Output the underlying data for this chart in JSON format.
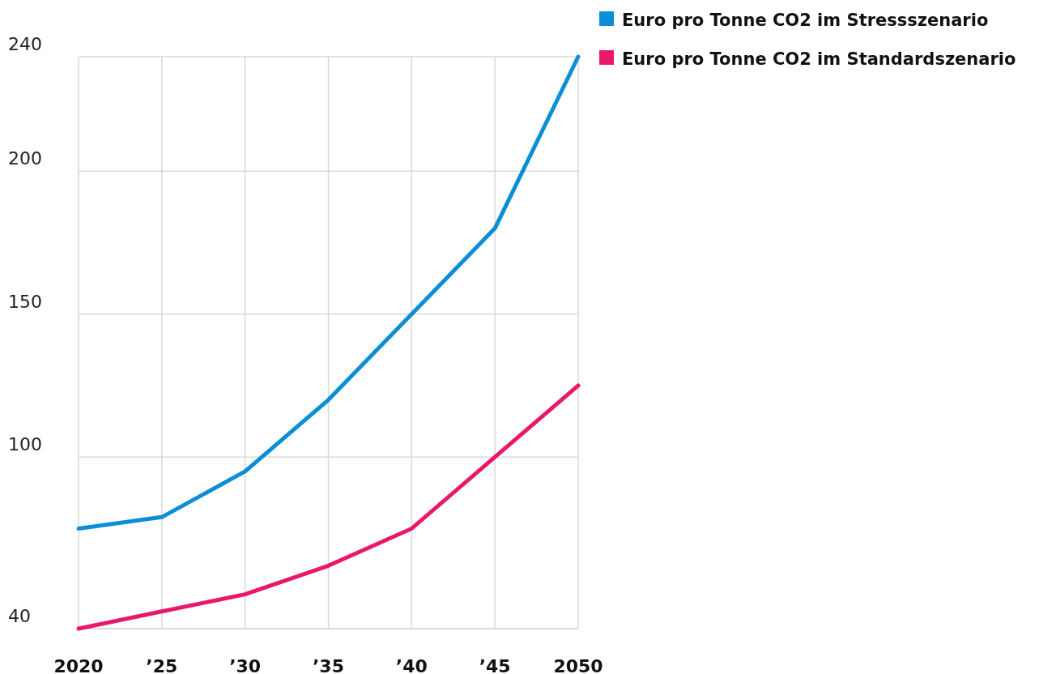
{
  "chart_data": {
    "type": "line",
    "x": [
      2020,
      2025,
      2030,
      2035,
      2040,
      2045,
      2050
    ],
    "series": [
      {
        "name": "Euro pro Tonne CO2 im Stressszenario",
        "color": "#0a8fd6",
        "values": [
          75,
          79,
          95,
          120,
          150,
          180,
          240
        ]
      },
      {
        "name": "Euro pro Tonne CO2 im Standardszenario",
        "color": "#e8196a",
        "values": [
          40,
          46,
          52,
          62,
          75,
          100,
          125
        ]
      }
    ],
    "xlim": [
      2020,
      2050
    ],
    "xticks": [
      2020,
      {
        "value": 2025,
        "label": "’25"
      },
      {
        "value": 2030,
        "label": "’30"
      },
      {
        "value": 2035,
        "label": "’35"
      },
      {
        "value": 2040,
        "label": "’40"
      },
      {
        "value": 2045,
        "label": "’45"
      },
      2050
    ],
    "ylim": [
      40,
      240
    ],
    "yticks": [
      40,
      100,
      150,
      200,
      240
    ],
    "grid": true,
    "legend": "top right",
    "marker": "none",
    "line_style": "solid"
  }
}
